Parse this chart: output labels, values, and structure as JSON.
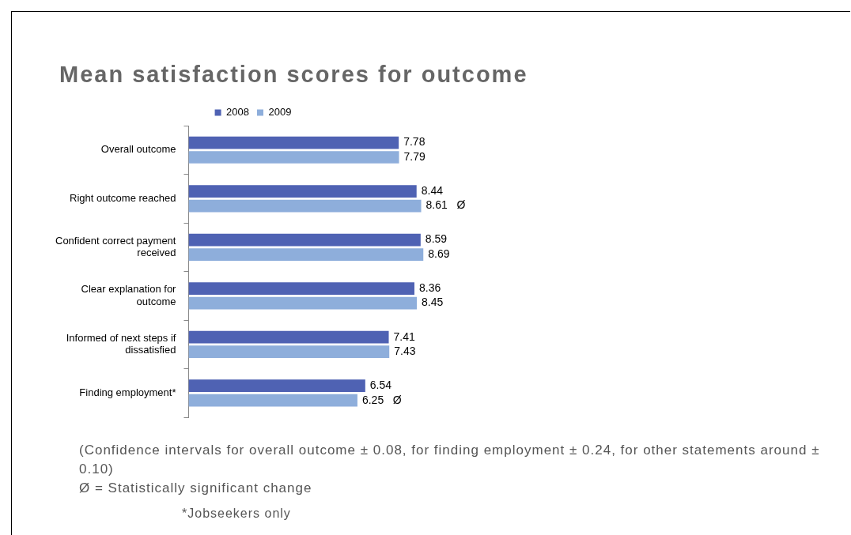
{
  "chart_data": {
    "type": "bar",
    "orientation": "horizontal",
    "title": "Mean satisfaction scores for outcome",
    "categories": [
      "Overall outcome",
      "Right outcome reached",
      "Confident correct payment received",
      "Clear explanation for outcome",
      "Informed of next steps if dissatisfied",
      "Finding employment*"
    ],
    "series": [
      {
        "name": "2008",
        "color": "#4f62b3",
        "values": [
          7.78,
          8.44,
          8.59,
          8.36,
          7.41,
          6.54
        ],
        "value_labels": [
          "7.78",
          "8.44",
          "8.59",
          "8.36",
          "7.41",
          "6.54"
        ]
      },
      {
        "name": "2009",
        "color": "#8eaedb",
        "values": [
          7.79,
          8.61,
          8.69,
          8.45,
          7.43,
          6.25
        ],
        "value_labels": [
          "7.79",
          "8.61   Ø",
          "8.69",
          "8.45",
          "7.43",
          "6.25   Ø"
        ]
      }
    ],
    "legend": "top",
    "grid": false,
    "annotations": [
      "(Confidence intervals for overall outcome ± 0.08, for finding employment ± 0.24, for other statements around ± 0.10)",
      "Ø = Statistically significant change",
      "*Jobseekers only"
    ]
  }
}
